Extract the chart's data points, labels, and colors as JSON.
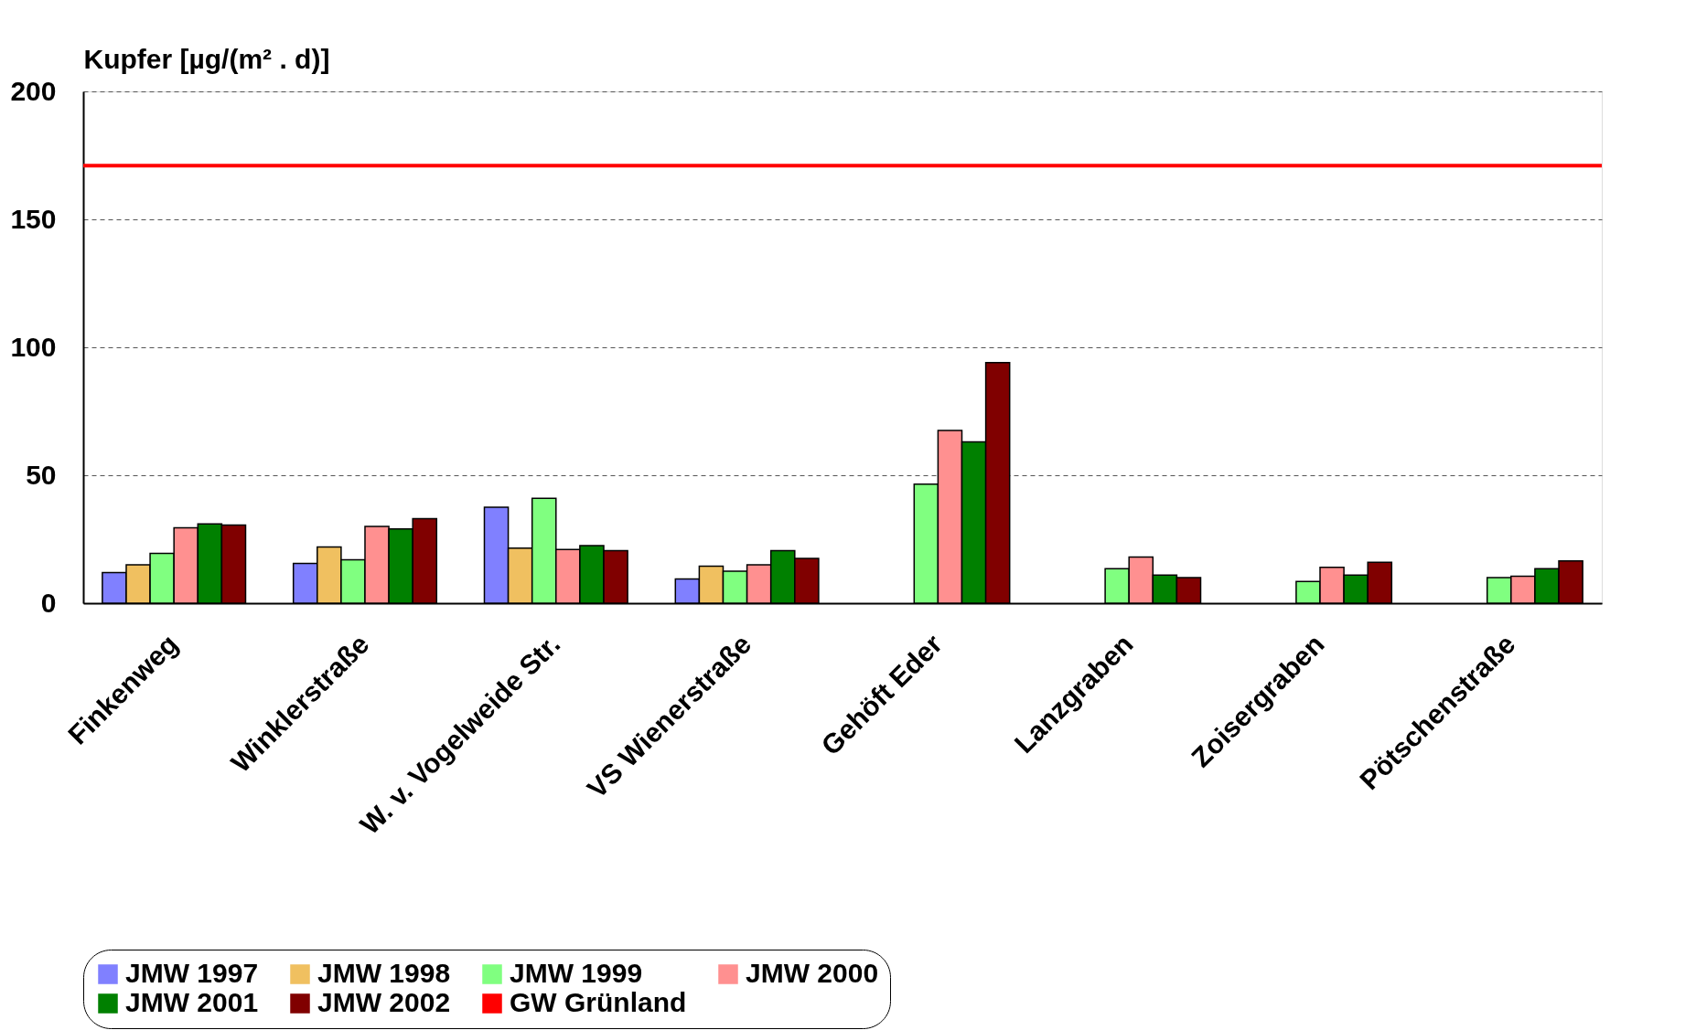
{
  "chart_data": {
    "type": "bar",
    "ylabel": "Kupfer [µg/(m² . d)]",
    "categories": [
      "Finkenweg",
      "Winklerstraße",
      "W. v. Vogelweide Str.",
      "VS Wienerstraße",
      "Gehöft Eder",
      "Lanzgraben",
      "Zoisergraben",
      "Pötschenstraße"
    ],
    "series": [
      {
        "name": "JMW 1997",
        "color": "#8080ff",
        "values": [
          12,
          15.5,
          37.5,
          9.5,
          null,
          null,
          null,
          null
        ]
      },
      {
        "name": "JMW 1998",
        "color": "#f0c060",
        "values": [
          15,
          22,
          21.5,
          14.5,
          null,
          null,
          null,
          null
        ]
      },
      {
        "name": "JMW 1999",
        "color": "#80ff80",
        "values": [
          19.5,
          17,
          41,
          12.5,
          46.5,
          13.5,
          8.5,
          10
        ]
      },
      {
        "name": "JMW 2000",
        "color": "#ff9090",
        "values": [
          29.5,
          30,
          21,
          15,
          67.5,
          18,
          14,
          10.5
        ]
      },
      {
        "name": "JMW 2001",
        "color": "#008000",
        "values": [
          31,
          29,
          22.5,
          20.5,
          63,
          11,
          11,
          13.5
        ]
      },
      {
        "name": "JMW 2002",
        "color": "#800000",
        "values": [
          30.5,
          33,
          20.5,
          17.5,
          94,
          10,
          16,
          16.5
        ]
      }
    ],
    "ref_lines": [
      {
        "axis": "y",
        "value": 171,
        "label": "GW Grünland",
        "color": "#ff0000"
      }
    ],
    "ylim": [
      0,
      200
    ],
    "yticks": [
      0,
      50,
      100,
      150,
      200
    ],
    "grid": "y",
    "legend": "bottom"
  }
}
